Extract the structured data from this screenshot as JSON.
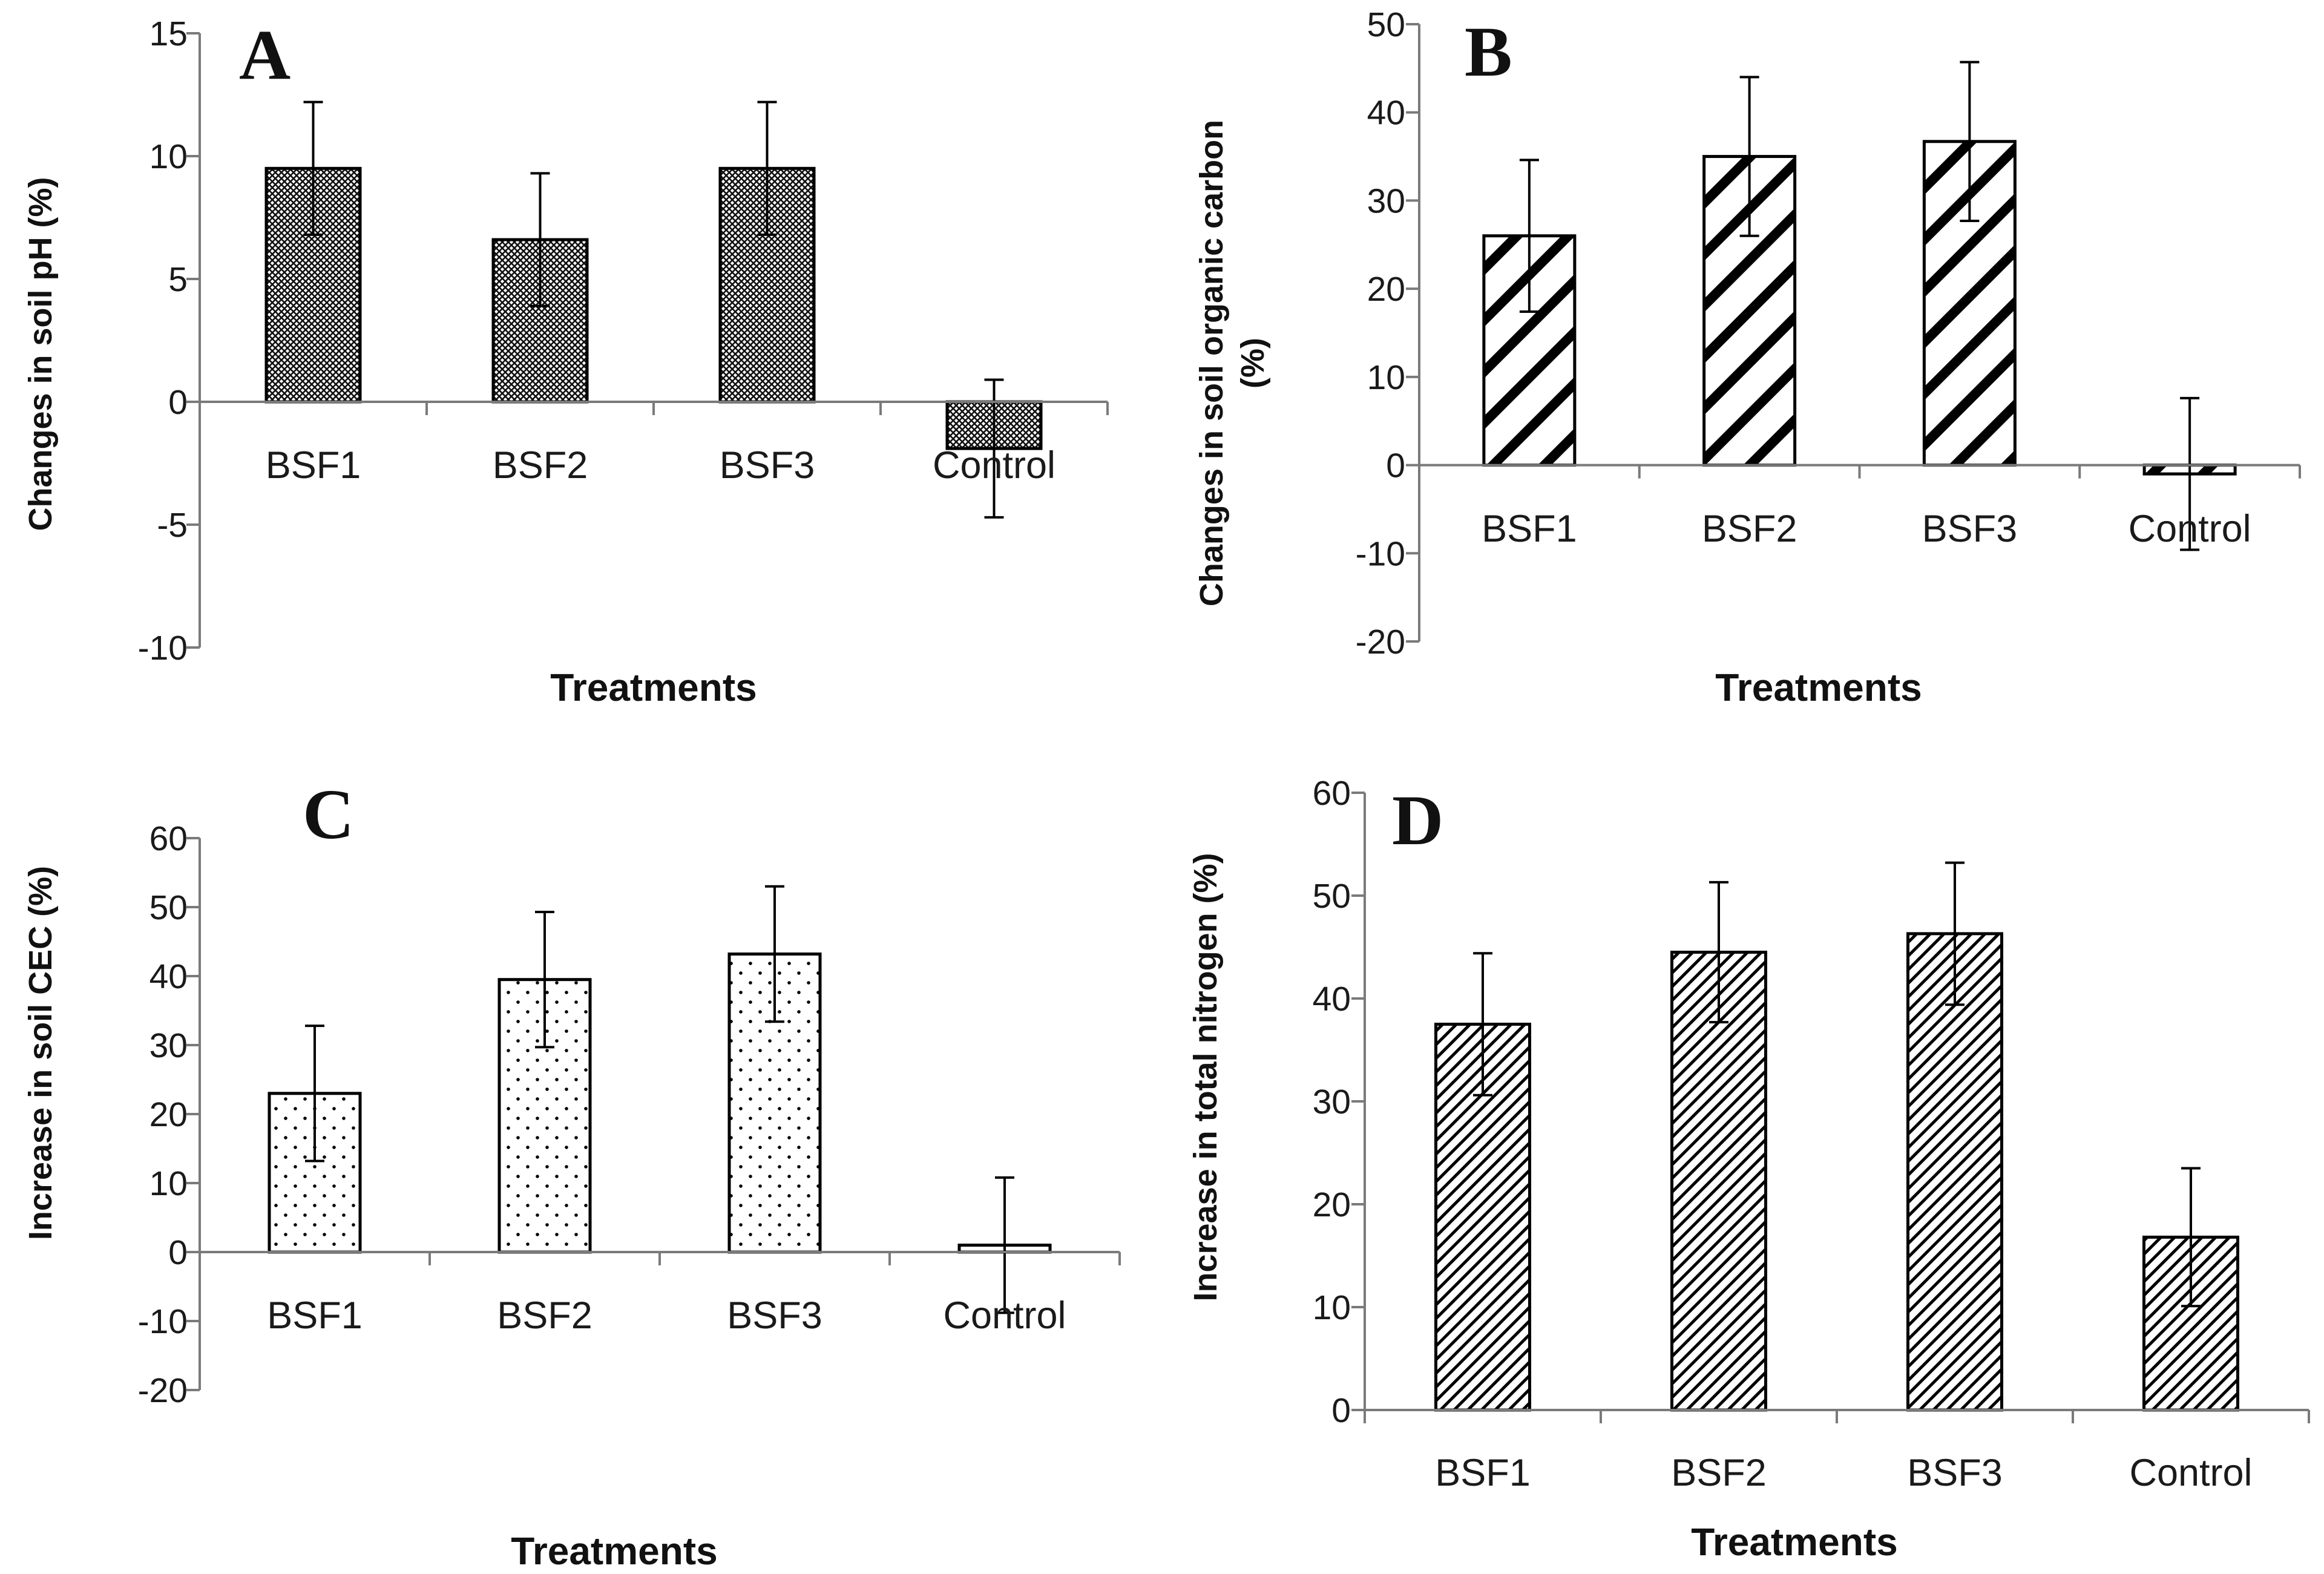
{
  "chart_data": [
    {
      "type": "bar",
      "panel_label": "A",
      "categories": [
        "BSF1",
        "BSF2",
        "BSF3",
        "Control"
      ],
      "values": [
        9.5,
        6.6,
        9.5,
        -1.9
      ],
      "errors": [
        2.7,
        2.7,
        2.7,
        2.8
      ],
      "ylabel": "Changes in soil pH (%)",
      "xlabel": "Treatments",
      "ylim": [
        -10,
        15
      ],
      "yticks": [
        -10,
        -5,
        0,
        5,
        10,
        15
      ],
      "pattern": "crosshatch"
    },
    {
      "type": "bar",
      "panel_label": "B",
      "categories": [
        "BSF1",
        "BSF2",
        "BSF3",
        "Control"
      ],
      "values": [
        26,
        35,
        36.7,
        -1
      ],
      "errors": [
        8.6,
        9,
        9,
        8.6
      ],
      "ylabel": "Changes in soil organic carbon (%)",
      "xlabel": "Treatments",
      "ylim": [
        -20,
        50
      ],
      "yticks": [
        -20,
        -10,
        0,
        10,
        20,
        30,
        40,
        50
      ],
      "pattern": "wide-diagonal"
    },
    {
      "type": "bar",
      "panel_label": "C",
      "categories": [
        "BSF1",
        "BSF2",
        "BSF3",
        "Control"
      ],
      "values": [
        23,
        39.5,
        43.2,
        1
      ],
      "errors": [
        9.8,
        9.8,
        9.8,
        9.8
      ],
      "ylabel": "Increase in soil CEC (%)",
      "xlabel": "Treatments",
      "ylim": [
        -20,
        60
      ],
      "yticks": [
        -20,
        -10,
        0,
        10,
        20,
        30,
        40,
        50,
        60
      ],
      "pattern": "dots"
    },
    {
      "type": "bar",
      "panel_label": "D",
      "categories": [
        "BSF1",
        "BSF2",
        "BSF3",
        "Control"
      ],
      "values": [
        37.5,
        44.5,
        46.3,
        16.8
      ],
      "errors": [
        6.9,
        6.8,
        6.9,
        6.7
      ],
      "ylabel": "Increase in total nitrogen (%)",
      "xlabel": "Treatments",
      "ylim": [
        0,
        60
      ],
      "yticks": [
        0,
        10,
        20,
        30,
        40,
        50,
        60
      ],
      "pattern": "fine-diagonal"
    }
  ]
}
